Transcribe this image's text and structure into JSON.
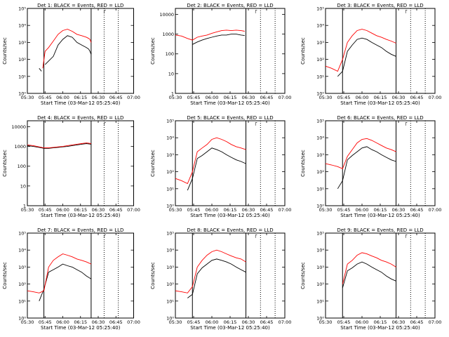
{
  "figure": {
    "xlabel": "Start Time (03-Mar-12 05:25:40)",
    "ylabel": "Counts/sec",
    "x_ticks": [
      "05:30",
      "05:45",
      "06:00",
      "06:15",
      "06:30",
      "06:45",
      "07:00"
    ],
    "y_ticks_logexp": [
      "10⁰",
      "10¹",
      "10²",
      "10³",
      "10⁴",
      "10⁵"
    ],
    "y_ticks_plain": [
      "1",
      "10",
      "100",
      "1000",
      "10000"
    ],
    "series_colors": {
      "Events": "#000000",
      "LLD": "#ff0000"
    },
    "marker_label": "┌"
  },
  "chart_data": [
    {
      "type": "line",
      "title": "Det 1: BLACK = Events, RED = LLD",
      "yscale": "log",
      "ylim": [
        1,
        100000
      ],
      "ytick_style": "exp",
      "x_time": [
        "05:40",
        "05:42",
        "05:43",
        "05:45",
        "05:48",
        "05:52",
        "05:56",
        "06:00",
        "06:04",
        "06:08",
        "06:12",
        "06:16",
        "06:20",
        "06:22",
        "06:23",
        "06:24"
      ],
      "series": [
        {
          "name": "Events",
          "values": [
            30,
            20,
            null,
            50,
            80,
            150,
            700,
            1500,
            2500,
            2000,
            1000,
            700,
            500,
            400,
            300,
            200
          ]
        },
        {
          "name": "LLD",
          "values": [
            null,
            null,
            30,
            300,
            500,
            1200,
            3000,
            5000,
            6000,
            4500,
            3000,
            2500,
            2000,
            1700,
            1500,
            1000
          ]
        }
      ],
      "vlines_solid": [
        "05:44",
        "06:24"
      ],
      "vlines_dotted": [
        "06:35",
        "06:47"
      ]
    },
    {
      "type": "line",
      "title": "Det 2: BLACK = Events, RED = LLD",
      "yscale": "log",
      "ylim": [
        1,
        20000
      ],
      "ytick_style": "plain",
      "x_time": [
        "05:30",
        "05:35",
        "05:40",
        "05:44",
        "05:48",
        "05:52",
        "05:56",
        "06:00",
        "06:04",
        "06:08",
        "06:12",
        "06:16",
        "06:20",
        "06:24",
        "06:27"
      ],
      "series": [
        {
          "name": "Events",
          "values": [
            null,
            null,
            null,
            300,
            400,
            500,
            600,
            700,
            800,
            900,
            900,
            1000,
            1000,
            900,
            850
          ]
        },
        {
          "name": "LLD",
          "values": [
            900,
            800,
            600,
            500,
            700,
            800,
            900,
            1100,
            1300,
            1500,
            1600,
            1500,
            1600,
            1500,
            1400
          ]
        }
      ],
      "vlines_solid": [
        "05:44",
        "06:28"
      ],
      "vlines_dotted": [
        "06:40",
        "06:52"
      ]
    },
    {
      "type": "line",
      "title": "Det 3: BLACK = Events, RED = LLD",
      "yscale": "log",
      "ylim": [
        1,
        100000
      ],
      "ytick_style": "exp",
      "x_time": [
        "05:30",
        "05:35",
        "05:40",
        "05:44",
        "05:48",
        "05:52",
        "05:56",
        "06:00",
        "06:04",
        "06:08",
        "06:12",
        "06:16",
        "06:20",
        "06:24",
        "06:28"
      ],
      "series": [
        {
          "name": "Events",
          "values": [
            null,
            null,
            10,
            20,
            300,
            700,
            1500,
            1800,
            1500,
            1000,
            700,
            500,
            300,
            200,
            150
          ]
        },
        {
          "name": "LLD",
          "values": [
            40,
            30,
            20,
            100,
            1000,
            2500,
            5000,
            6000,
            5000,
            3500,
            2500,
            2000,
            1500,
            1200,
            900
          ]
        }
      ],
      "vlines_solid": [
        "05:44",
        "06:28"
      ],
      "vlines_dotted": [
        "06:40",
        "06:52"
      ]
    },
    {
      "type": "line",
      "title": "Det 4: BLACK = Events, RED = LLD",
      "yscale": "log",
      "ylim": [
        1,
        20000
      ],
      "ytick_style": "plain",
      "x_time": [
        "05:30",
        "05:35",
        "05:40",
        "05:44",
        "05:48",
        "05:52",
        "05:56",
        "06:00",
        "06:04",
        "06:08",
        "06:12",
        "06:16",
        "06:20",
        "06:24"
      ],
      "series": [
        {
          "name": "Events",
          "values": [
            1100,
            1000,
            900,
            800,
            800,
            850,
            900,
            950,
            1000,
            1100,
            1200,
            1300,
            1400,
            1300
          ]
        },
        {
          "name": "LLD",
          "values": [
            1200,
            1100,
            950,
            850,
            850,
            900,
            950,
            1000,
            1100,
            1200,
            1300,
            1400,
            1500,
            1400
          ]
        }
      ],
      "vlines_solid": [
        "05:44",
        "06:24"
      ],
      "vlines_dotted": [
        "06:35",
        "06:47"
      ]
    },
    {
      "type": "line",
      "title": "Det 5: BLACK = Events, RED = LLD",
      "yscale": "log",
      "ylim": [
        1,
        100000
      ],
      "ytick_style": "exp",
      "x_time": [
        "05:30",
        "05:35",
        "05:40",
        "05:44",
        "05:48",
        "05:52",
        "05:56",
        "06:00",
        "06:04",
        "06:08",
        "06:12",
        "06:16",
        "06:20",
        "06:24",
        "06:28"
      ],
      "series": [
        {
          "name": "Events",
          "values": [
            null,
            null,
            8,
            40,
            600,
            900,
            1500,
            2500,
            2000,
            1500,
            1000,
            700,
            500,
            400,
            300
          ]
        },
        {
          "name": "LLD",
          "values": [
            40,
            30,
            20,
            100,
            1500,
            2500,
            4000,
            8000,
            10000,
            8000,
            6000,
            4000,
            3000,
            2500,
            2000
          ]
        }
      ],
      "vlines_solid": [
        "05:44",
        "06:28"
      ],
      "vlines_dotted": [
        "06:40",
        "06:52"
      ]
    },
    {
      "type": "line",
      "title": "Det 6: BLACK = Events, RED = LLD",
      "yscale": "log",
      "ylim": [
        1,
        100000
      ],
      "ytick_style": "exp",
      "x_time": [
        "05:30",
        "05:35",
        "05:40",
        "05:44",
        "05:48",
        "05:52",
        "05:56",
        "06:00",
        "06:04",
        "06:08",
        "06:12",
        "06:16",
        "06:20",
        "06:24",
        "06:28"
      ],
      "series": [
        {
          "name": "Events",
          "values": [
            null,
            null,
            10,
            30,
            500,
            900,
            1500,
            2500,
            3000,
            2000,
            1500,
            1000,
            700,
            500,
            400
          ]
        },
        {
          "name": "LLD",
          "values": [
            300,
            250,
            200,
            150,
            800,
            2000,
            5000,
            8000,
            9000,
            7000,
            5000,
            3500,
            2500,
            2000,
            1500
          ]
        }
      ],
      "vlines_solid": [
        "05:44",
        "06:28"
      ],
      "vlines_dotted": [
        "06:40",
        "06:52"
      ]
    },
    {
      "type": "line",
      "title": "Det 7: BLACK = Events, RED = LLD",
      "yscale": "log",
      "ylim": [
        1,
        100000
      ],
      "ytick_style": "exp",
      "x_time": [
        "05:30",
        "05:35",
        "05:40",
        "05:44",
        "05:48",
        "05:52",
        "05:56",
        "06:00",
        "06:04",
        "06:08",
        "06:12",
        "06:16",
        "06:20",
        "06:24"
      ],
      "series": [
        {
          "name": "Events",
          "values": [
            null,
            null,
            10,
            50,
            500,
            700,
            1000,
            1500,
            1200,
            1000,
            700,
            500,
            300,
            200
          ]
        },
        {
          "name": "LLD",
          "values": [
            40,
            35,
            30,
            40,
            1000,
            2500,
            4000,
            6000,
            5000,
            4000,
            3000,
            2500,
            2000,
            1500
          ]
        }
      ],
      "vlines_solid": [
        "05:44",
        "06:24"
      ],
      "vlines_dotted": [
        "06:35",
        "06:47"
      ]
    },
    {
      "type": "line",
      "title": "Det 8: BLACK = Events, RED = LLD",
      "yscale": "log",
      "ylim": [
        1,
        100000
      ],
      "ytick_style": "exp",
      "x_time": [
        "05:30",
        "05:35",
        "05:40",
        "05:44",
        "05:48",
        "05:52",
        "05:56",
        "06:00",
        "06:04",
        "06:08",
        "06:12",
        "06:16",
        "06:20",
        "06:24",
        "06:28"
      ],
      "series": [
        {
          "name": "Events",
          "values": [
            null,
            null,
            15,
            25,
            400,
            900,
            1500,
            2500,
            3000,
            2500,
            2000,
            1500,
            1000,
            700,
            500
          ]
        },
        {
          "name": "LLD",
          "values": [
            40,
            35,
            30,
            70,
            1000,
            2500,
            5000,
            8000,
            10000,
            8000,
            6000,
            4500,
            3500,
            3000,
            2000
          ]
        }
      ],
      "vlines_solid": [
        "05:44",
        "06:28"
      ],
      "vlines_dotted": [
        "06:40",
        "06:52"
      ]
    },
    {
      "type": "line",
      "title": "Det 9: BLACK = Events, RED = LLD",
      "yscale": "log",
      "ylim": [
        1,
        100000
      ],
      "ytick_style": "exp",
      "x_time": [
        "05:30",
        "05:35",
        "05:40",
        "05:44",
        "05:48",
        "05:52",
        "05:56",
        "06:00",
        "06:04",
        "06:08",
        "06:12",
        "06:16",
        "06:20",
        "06:24",
        "06:28"
      ],
      "series": [
        {
          "name": "Events",
          "values": [
            null,
            null,
            null,
            60,
            600,
            900,
            1500,
            2000,
            1500,
            1000,
            700,
            500,
            300,
            200,
            150
          ]
        },
        {
          "name": "LLD",
          "values": [
            null,
            null,
            null,
            100,
            1500,
            2500,
            5000,
            7000,
            6000,
            4500,
            3500,
            2500,
            2000,
            1500,
            1000
          ]
        }
      ],
      "vlines_solid": [
        "05:44",
        "06:28"
      ],
      "vlines_dotted": [
        "06:40",
        "06:52"
      ]
    }
  ]
}
